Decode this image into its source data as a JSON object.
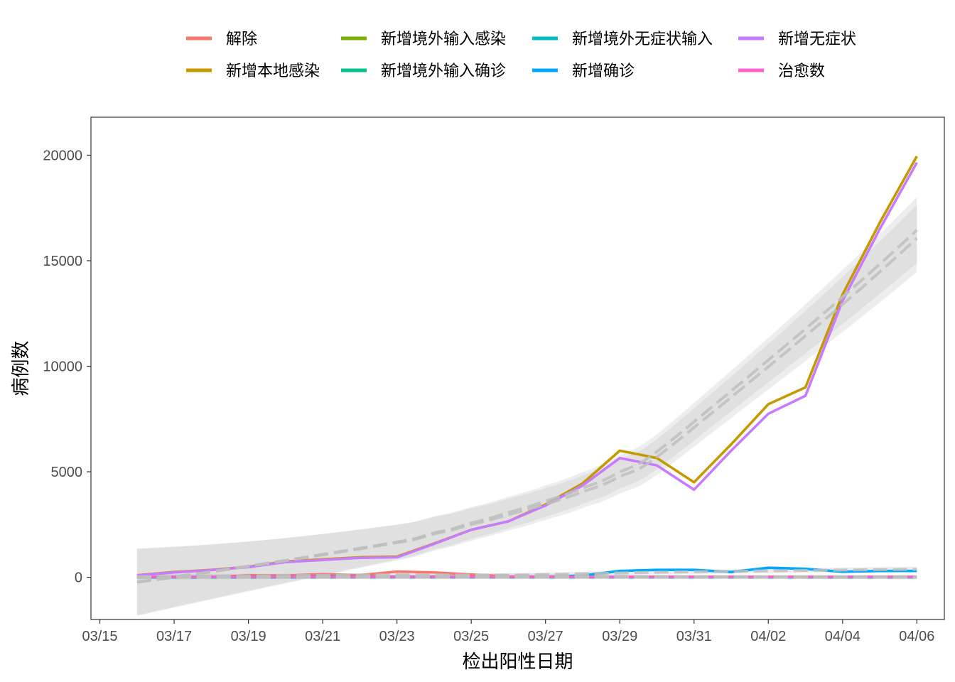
{
  "chart_data": {
    "type": "line",
    "xlabel": "检出阳性日期",
    "ylabel": "病例数",
    "ylim": [
      -2000,
      21800
    ],
    "xlim": [
      "03/15",
      "04/07"
    ],
    "x_ticks": [
      "03/15",
      "03/17",
      "03/19",
      "03/21",
      "03/23",
      "03/25",
      "03/27",
      "03/29",
      "03/31",
      "04/02",
      "04/04",
      "04/06"
    ],
    "y_ticks": [
      0,
      5000,
      10000,
      15000,
      20000
    ],
    "legend_position": "top",
    "grid": false,
    "x": [
      "03/16",
      "03/17",
      "03/18",
      "03/19",
      "03/20",
      "03/21",
      "03/22",
      "03/23",
      "03/24",
      "03/25",
      "03/26",
      "03/27",
      "03/28",
      "03/29",
      "03/30",
      "03/31",
      "04/01",
      "04/02",
      "04/03",
      "04/04",
      "04/05",
      "04/06"
    ],
    "series": [
      {
        "name": "解除",
        "color": "#F8766D",
        "values": [
          0,
          0,
          0,
          100,
          80,
          150,
          100,
          270,
          230,
          130,
          40,
          30,
          20,
          20,
          20,
          20,
          20,
          20,
          20,
          20,
          20,
          20
        ]
      },
      {
        "name": "新增本地感染",
        "color": "#C49A00",
        "values": [
          100,
          250,
          350,
          500,
          750,
          850,
          950,
          980,
          1600,
          2250,
          2650,
          3450,
          4450,
          6000,
          5650,
          4500,
          6300,
          8200,
          9000,
          13400,
          16800,
          19950
        ]
      },
      {
        "name": "新增境外输入感染",
        "color": "#7CAE00",
        "values": [
          5,
          5,
          5,
          5,
          5,
          5,
          5,
          5,
          5,
          5,
          5,
          5,
          5,
          5,
          5,
          5,
          5,
          5,
          5,
          5,
          5,
          5
        ]
      },
      {
        "name": "新增境外输入确诊",
        "color": "#00C08B",
        "values": [
          5,
          5,
          5,
          5,
          5,
          5,
          5,
          5,
          5,
          5,
          5,
          5,
          5,
          5,
          5,
          5,
          5,
          5,
          5,
          5,
          5,
          5
        ]
      },
      {
        "name": "新增境外无症状输入",
        "color": "#00BFC4",
        "values": [
          0,
          0,
          0,
          0,
          0,
          0,
          0,
          0,
          0,
          0,
          0,
          0,
          0,
          0,
          0,
          0,
          0,
          0,
          0,
          0,
          0,
          0
        ]
      },
      {
        "name": "新增确诊",
        "color": "#00A9FF",
        "values": [
          10,
          20,
          20,
          30,
          30,
          40,
          40,
          30,
          30,
          20,
          20,
          20,
          80,
          300,
          350,
          350,
          250,
          450,
          400,
          260,
          300,
          300
        ]
      },
      {
        "name": "新增无症状",
        "color": "#C77CFF",
        "values": [
          90,
          230,
          340,
          480,
          720,
          820,
          920,
          950,
          1580,
          2250,
          2650,
          3400,
          4350,
          5650,
          5300,
          4150,
          6000,
          7750,
          8600,
          13100,
          16500,
          19650
        ]
      },
      {
        "name": "治愈数",
        "color": "#FF61CC",
        "values": [
          20,
          20,
          20,
          20,
          20,
          20,
          20,
          20,
          20,
          20,
          20,
          20,
          20,
          20,
          20,
          20,
          20,
          20,
          20,
          20,
          20,
          20
        ]
      }
    ],
    "smooth_color": "#BEBEBE",
    "ribbon_color": "#BEBEBE"
  }
}
